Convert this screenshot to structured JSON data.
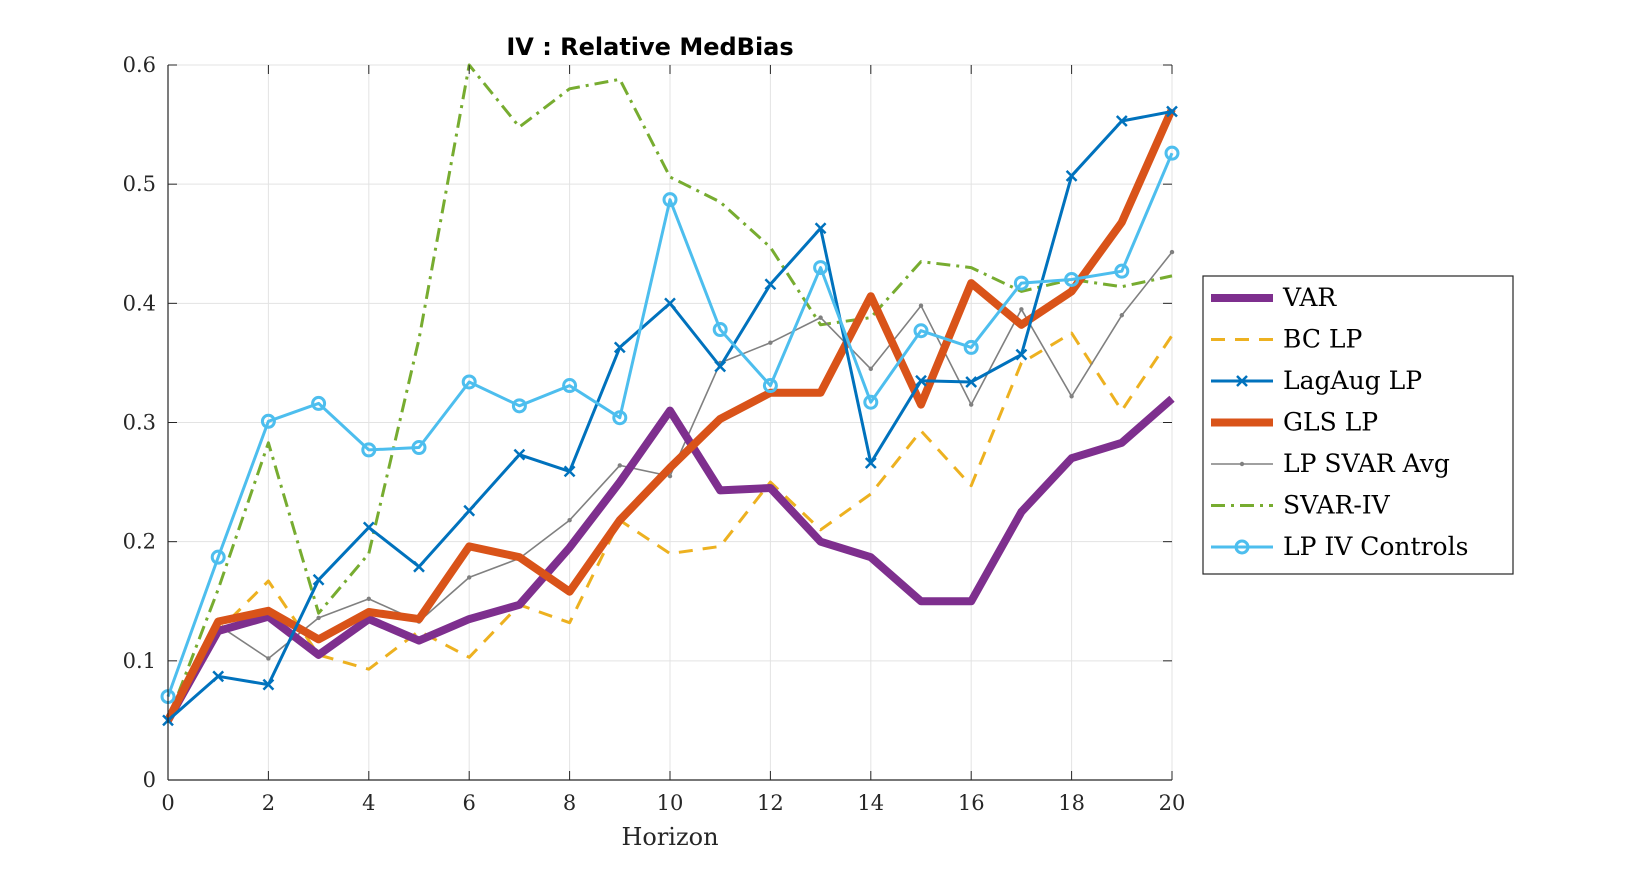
{
  "chart_data": {
    "type": "line",
    "title": "IV : Relative MedBias",
    "xlabel": "Horizon",
    "ylabel": "",
    "xlim": [
      0,
      20
    ],
    "ylim": [
      0,
      0.6
    ],
    "x_ticks": [
      "0",
      "2",
      "4",
      "6",
      "8",
      "10",
      "12",
      "14",
      "16",
      "18",
      "20"
    ],
    "y_ticks": [
      "0",
      "0.1",
      "0.2",
      "0.3",
      "0.4",
      "0.5",
      "0.6"
    ],
    "grid": true,
    "legend_position": "right",
    "x": [
      0,
      1,
      2,
      3,
      4,
      5,
      6,
      7,
      8,
      9,
      10,
      11,
      12,
      13,
      14,
      15,
      16,
      17,
      18,
      19,
      20
    ],
    "series": [
      {
        "name": "VAR",
        "color": "#7E2F8E",
        "dash": "solid",
        "marker": "none",
        "values": [
          0.05,
          0.125,
          0.137,
          0.105,
          0.135,
          0.117,
          0.135,
          0.147,
          0.195,
          0.25,
          0.31,
          0.243,
          0.245,
          0.2,
          0.187,
          0.15,
          0.15,
          0.225,
          0.27,
          0.283,
          0.32
        ]
      },
      {
        "name": "BC LP",
        "color": "#EDB120",
        "dash": "dashed",
        "marker": "none",
        "values": [
          0.05,
          0.125,
          0.167,
          0.105,
          0.093,
          0.125,
          0.103,
          0.147,
          0.132,
          0.218,
          0.19,
          0.196,
          0.25,
          0.21,
          0.24,
          0.293,
          0.247,
          0.35,
          0.375,
          0.31,
          0.373
        ]
      },
      {
        "name": "LagAug LP",
        "color": "#0072BD",
        "dash": "solid",
        "marker": "x",
        "values": [
          0.05,
          0.087,
          0.08,
          0.168,
          0.212,
          0.179,
          0.226,
          0.273,
          0.259,
          0.363,
          0.4,
          0.347,
          0.416,
          0.463,
          0.266,
          0.335,
          0.334,
          0.357,
          0.507,
          0.553,
          0.561
        ]
      },
      {
        "name": "GLS LP",
        "color": "#D95319",
        "dash": "solid",
        "marker": "none",
        "values": [
          0.05,
          0.133,
          0.142,
          0.118,
          0.141,
          0.135,
          0.196,
          0.187,
          0.158,
          0.218,
          0.262,
          0.303,
          0.325,
          0.325,
          0.406,
          0.315,
          0.417,
          0.382,
          0.41,
          0.468,
          0.563
        ]
      },
      {
        "name": "LP SVAR Avg",
        "color": "#808080",
        "dash": "solid",
        "marker": "dot",
        "values": [
          0.05,
          0.13,
          0.102,
          0.136,
          0.152,
          0.133,
          0.17,
          0.186,
          0.218,
          0.264,
          0.255,
          0.35,
          0.367,
          0.388,
          0.345,
          0.398,
          0.315,
          0.395,
          0.322,
          0.39,
          0.443
        ]
      },
      {
        "name": "SVAR-IV",
        "color": "#77AC30",
        "dash": "dashdot",
        "marker": "none",
        "values": [
          0.05,
          0.16,
          0.283,
          0.14,
          0.19,
          0.37,
          0.6,
          0.548,
          0.58,
          0.588,
          0.506,
          0.485,
          0.447,
          0.382,
          0.388,
          0.435,
          0.43,
          0.41,
          0.42,
          0.414,
          0.423
        ]
      },
      {
        "name": "LP IV Controls",
        "color": "#4DBEEE",
        "dash": "solid",
        "marker": "circle",
        "values": [
          0.07,
          0.187,
          0.301,
          0.316,
          0.277,
          0.279,
          0.334,
          0.314,
          0.331,
          0.304,
          0.487,
          0.378,
          0.331,
          0.43,
          0.317,
          0.377,
          0.363,
          0.417,
          0.42,
          0.427,
          0.526
        ]
      }
    ]
  }
}
